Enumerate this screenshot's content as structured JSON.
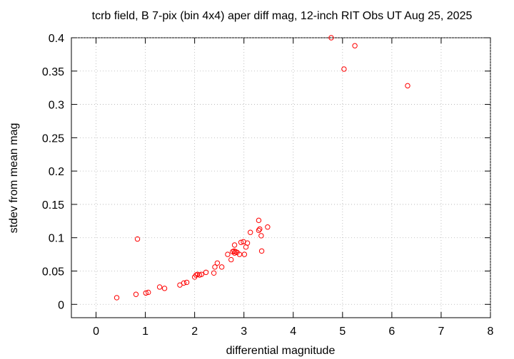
{
  "chart_data": {
    "type": "scatter",
    "title": "tcrb field, B 7-pix (bin 4x4) aper diff mag,  12-inch RIT Obs UT Aug 25, 2025",
    "x_label": "differential magnitude",
    "y_label": "stdev from mean mag",
    "xlim": [
      -0.5,
      8
    ],
    "ylim": [
      -0.02,
      0.4
    ],
    "xticks": [
      0,
      1,
      2,
      3,
      4,
      5,
      6,
      7,
      8
    ],
    "yticks": [
      0,
      0.05,
      0.1,
      0.15,
      0.2,
      0.25,
      0.3,
      0.35,
      0.4
    ],
    "grid": true,
    "color": "#ff0000",
    "x": [
      0.42,
      0.81,
      0.84,
      1.01,
      1.06,
      1.29,
      1.39,
      1.7,
      1.78,
      1.84,
      2.0,
      2.03,
      2.06,
      2.1,
      2.14,
      2.23,
      2.39,
      2.41,
      2.46,
      2.55,
      2.67,
      2.74,
      2.77,
      2.8,
      2.81,
      2.83,
      2.86,
      2.81,
      2.91,
      2.94,
      2.99,
      3.01,
      3.04,
      3.07,
      3.13,
      3.3,
      3.3,
      3.32,
      3.35,
      3.36,
      3.48,
      4.77,
      5.25,
      5.03,
      6.32
    ],
    "values": [
      0.01,
      0.015,
      0.098,
      0.017,
      0.018,
      0.026,
      0.024,
      0.029,
      0.032,
      0.033,
      0.041,
      0.044,
      0.045,
      0.044,
      0.045,
      0.048,
      0.047,
      0.056,
      0.062,
      0.056,
      0.075,
      0.067,
      0.079,
      0.08,
      0.077,
      0.079,
      0.078,
      0.089,
      0.075,
      0.093,
      0.094,
      0.075,
      0.086,
      0.092,
      0.108,
      0.126,
      0.111,
      0.113,
      0.103,
      0.08,
      0.116,
      0.4,
      0.388,
      0.353,
      0.328
    ]
  }
}
